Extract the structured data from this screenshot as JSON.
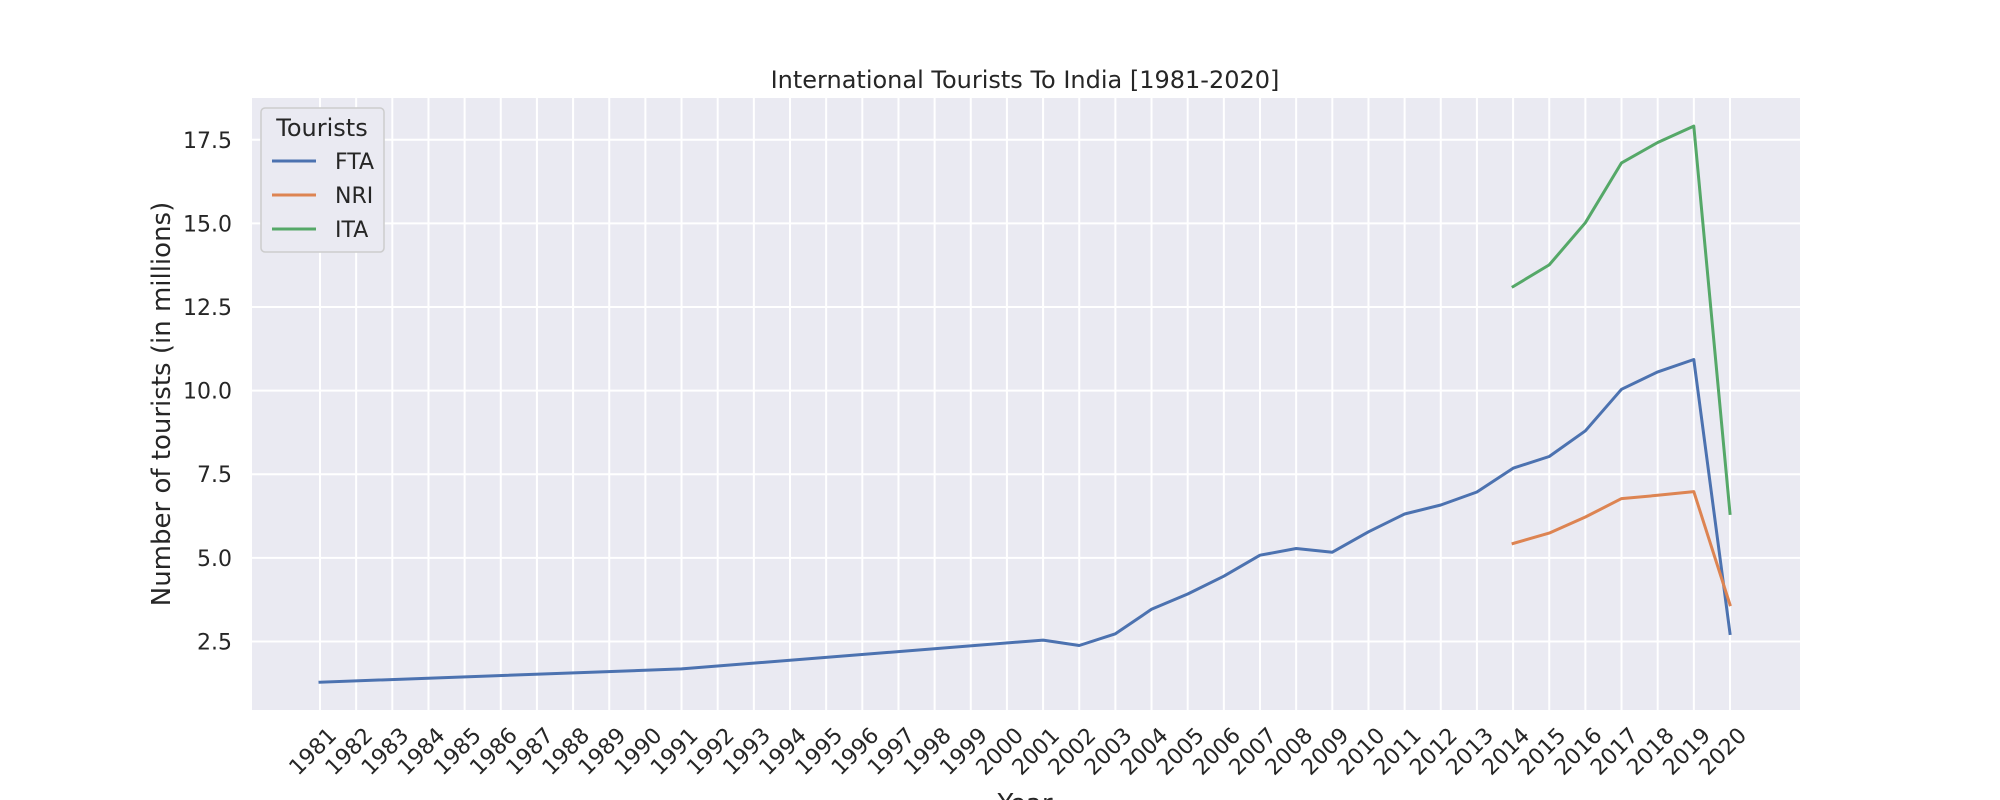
{
  "chart_data": {
    "type": "line",
    "title": "International Tourists To India [1981-2020]",
    "xlabel": "Year",
    "ylabel": "Number of tourists (in millions)",
    "x": [
      1981,
      1982,
      1983,
      1984,
      1985,
      1986,
      1987,
      1988,
      1989,
      1990,
      1991,
      1992,
      1993,
      1994,
      1995,
      1996,
      1997,
      1998,
      1999,
      2000,
      2001,
      2002,
      2003,
      2004,
      2005,
      2006,
      2007,
      2008,
      2009,
      2010,
      2011,
      2012,
      2013,
      2014,
      2015,
      2016,
      2017,
      2018,
      2019,
      2020
    ],
    "x_tick_labels": [
      "1981",
      "1982",
      "1983",
      "1984",
      "1985",
      "1986",
      "1987",
      "1988",
      "1989",
      "1990",
      "1991",
      "1992",
      "1993",
      "1994",
      "1995",
      "1996",
      "1997",
      "1998",
      "1999",
      "2000",
      "2001",
      "2002",
      "2003",
      "2004",
      "2005",
      "2006",
      "2007",
      "2008",
      "2009",
      "2010",
      "2011",
      "2012",
      "2013",
      "2014",
      "2015",
      "2016",
      "2017",
      "2018",
      "2019",
      "2020"
    ],
    "y_ticks": [
      2.5,
      5.0,
      7.5,
      10.0,
      12.5,
      15.0,
      17.5
    ],
    "y_tick_labels": [
      "2.5",
      "5.0",
      "7.5",
      "10.0",
      "12.5",
      "15.0",
      "17.5"
    ],
    "ylim": [
      0.45,
      18.75
    ],
    "grid": true,
    "legend": {
      "title": "Tourists",
      "placement": "top-left"
    },
    "series": [
      {
        "name": "FTA",
        "color": "#4c72b0",
        "points": [
          [
            1981,
            1.28
          ],
          [
            1991,
            1.68
          ],
          [
            2001,
            2.54
          ],
          [
            2002,
            2.38
          ],
          [
            2003,
            2.73
          ],
          [
            2004,
            3.46
          ],
          [
            2005,
            3.92
          ],
          [
            2006,
            4.45
          ],
          [
            2007,
            5.08
          ],
          [
            2008,
            5.28
          ],
          [
            2009,
            5.17
          ],
          [
            2010,
            5.78
          ],
          [
            2011,
            6.31
          ],
          [
            2012,
            6.58
          ],
          [
            2013,
            6.97
          ],
          [
            2014,
            7.68
          ],
          [
            2015,
            8.03
          ],
          [
            2016,
            8.8
          ],
          [
            2017,
            10.04
          ],
          [
            2018,
            10.56
          ],
          [
            2019,
            10.93
          ],
          [
            2020,
            2.74
          ]
        ]
      },
      {
        "name": "NRI",
        "color": "#dd8452",
        "points": [
          [
            2014,
            5.43
          ],
          [
            2015,
            5.74
          ],
          [
            2016,
            6.22
          ],
          [
            2017,
            6.77
          ],
          [
            2018,
            6.87
          ],
          [
            2019,
            6.98
          ],
          [
            2020,
            3.6
          ]
        ]
      },
      {
        "name": "ITA",
        "color": "#55a868",
        "points": [
          [
            2014,
            13.11
          ],
          [
            2015,
            13.76
          ],
          [
            2016,
            15.02
          ],
          [
            2017,
            16.81
          ],
          [
            2018,
            17.42
          ],
          [
            2019,
            17.91
          ],
          [
            2020,
            6.33
          ]
        ]
      }
    ]
  }
}
